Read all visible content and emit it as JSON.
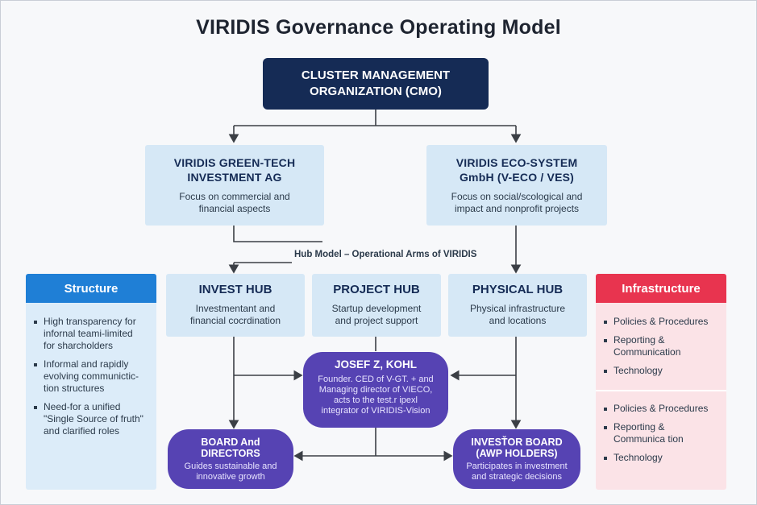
{
  "title": "VIRIDIS Governance Operating Model",
  "cmo": {
    "line1": "CLUSTER MANAGEMENT",
    "line2": "ORGANIZATION (CMO)"
  },
  "greentech": {
    "title1": "VIRIDIS GREEN-TECH",
    "title2": "INVESTMENT AG",
    "desc1": "Focus on commercial and",
    "desc2": "financial aspects"
  },
  "ecosystem": {
    "title1": "VIRIDIS ECO-SYSTEM",
    "title2": "GmbH (V-ECO / VES)",
    "desc1": "Focus on social/scological and",
    "desc2": "impact and nonprofit projects"
  },
  "hub_model_label": "Hub Model – Operational Arms of VIRIDIS",
  "hubs": [
    {
      "title": "INVEST HUB",
      "desc1": "Investmentant and",
      "desc2": "financial cocrdination"
    },
    {
      "title": "PROJECT HUB",
      "desc1": "Startup development",
      "desc2": "and project support"
    },
    {
      "title": "PHYSICAL HUB",
      "desc1": "Physical infrastructure",
      "desc2": "and locations"
    }
  ],
  "josef": {
    "title": "JOSEF Z, KOHL",
    "desc": [
      "Founder. CED of V-GT. + and",
      "Managing director of VIECO,",
      "acts to the test.r ipexl",
      "integrator of VIRIDIS-Vision"
    ]
  },
  "board": {
    "title1": "BOARD And",
    "title2": "DIRECTORS",
    "desc1": "Guides sustainable and",
    "desc2": "innovative growth"
  },
  "investor": {
    "title1": "INVESŤOR BOARD",
    "title2": "(AWP HOLDERS)",
    "desc1": "Participates in investment",
    "desc2": "and strategic decisions"
  },
  "structure": {
    "heading": "Structure",
    "items": [
      [
        "High transparency for",
        "infornal teami-limited",
        "for sharcholders"
      ],
      [
        "Informal and rapidly",
        "evolving communictic-",
        "tion structures"
      ],
      [
        "Need-for a unified",
        "\"Single Source of fruth\"",
        "and clarified roles"
      ]
    ]
  },
  "infrastructure": {
    "heading": "Infrastructure",
    "group1": [
      [
        "Policies & Procedures"
      ],
      [
        "Reporting &",
        "Communication"
      ],
      [
        "Technology"
      ]
    ],
    "group2": [
      [
        "Policies & Procedures"
      ],
      [
        "Reporting &",
        "Communica tion"
      ],
      [
        "Technology"
      ]
    ]
  },
  "colors": {
    "navy": "#152b55",
    "light_blue": "#d6e8f6",
    "purple": "#5643b3",
    "structure_blue": "#1f7fd6",
    "infra_red": "#e8344f",
    "infra_panel": "#fbe3e7",
    "structure_panel": "#dcecf9"
  }
}
